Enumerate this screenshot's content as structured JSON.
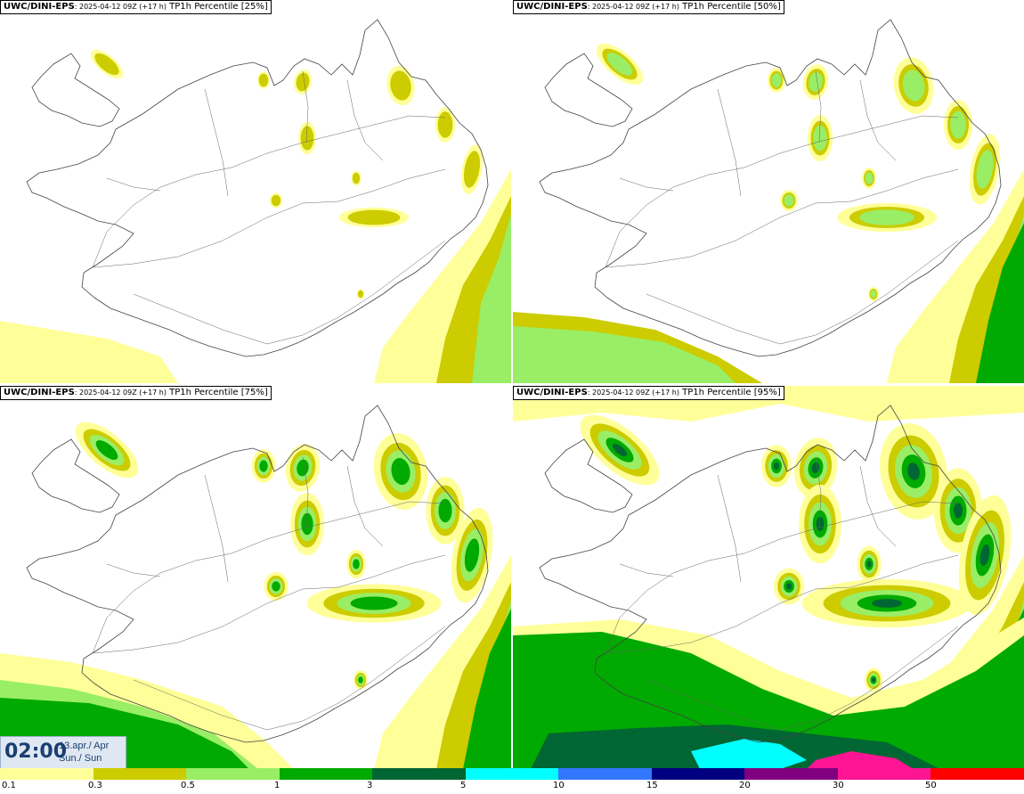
{
  "panels": [
    {
      "model": "UWC/DINI-EPS",
      "meta": ": 2025-04-12 09Z (+17 h)",
      "field": "TP1h Percentile [25%]",
      "level": 1
    },
    {
      "model": "UWC/DINI-EPS",
      "meta": ": 2025-04-12 09Z (+17 h)",
      "field": "TP1h Percentile [50%]",
      "level": 2
    },
    {
      "model": "UWC/DINI-EPS",
      "meta": ": 2025-04-12 09Z (+17 h)",
      "field": "TP1h Percentile [75%]",
      "level": 3
    },
    {
      "model": "UWC/DINI-EPS",
      "meta": ": 2025-04-12 09Z (+17 h)",
      "field": "TP1h Percentile [95%]",
      "level": 4
    }
  ],
  "valid_time": {
    "time": "02:00",
    "date": "13.apr./ Apr",
    "day": "Sun./ Sun"
  },
  "legend": {
    "labels": [
      "0.1",
      "0.3",
      "0.5",
      "1",
      "3",
      "5",
      "10",
      "15",
      "20",
      "30",
      "50"
    ],
    "colors": [
      "#ffff99",
      "#cccc00",
      "#99ee66",
      "#00aa00",
      "#006633",
      "#00ffff",
      "#3377ff",
      "#000080",
      "#800080",
      "#ff1493",
      "#ff0000"
    ]
  }
}
